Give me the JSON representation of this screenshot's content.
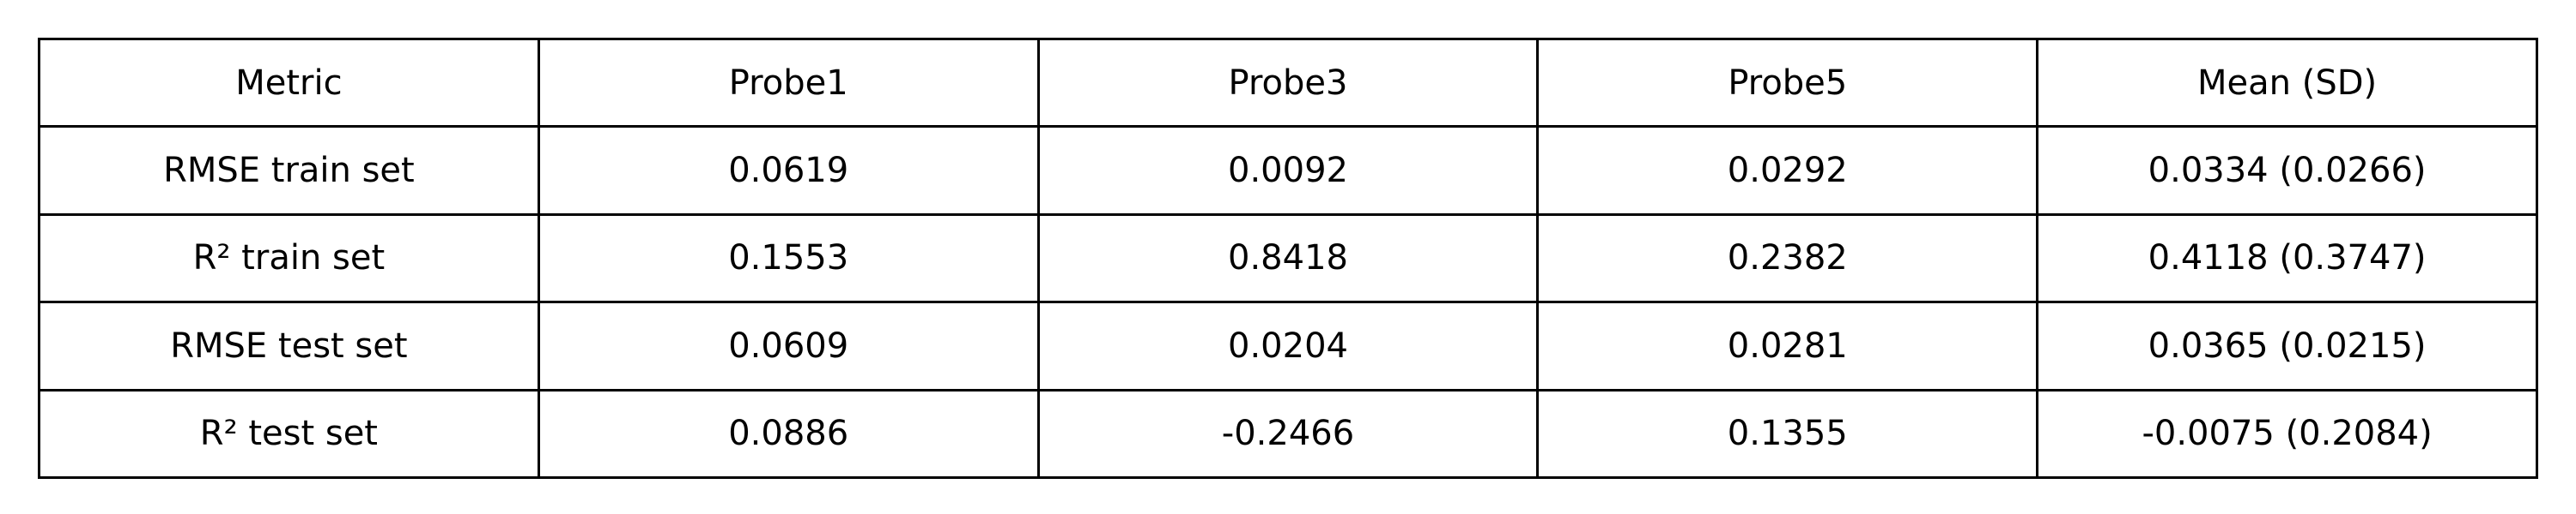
{
  "chart_data": {
    "type": "table",
    "columns": [
      "Metric",
      "Probe1",
      "Probe3",
      "Probe5",
      "Mean (SD)"
    ],
    "rows": [
      [
        "RMSE train set",
        "0.0619",
        "0.0092",
        "0.0292",
        "0.0334 (0.0266)"
      ],
      [
        "R² train set",
        "0.1553",
        "0.8418",
        "0.2382",
        "0.4118 (0.3747)"
      ],
      [
        "RMSE test set",
        "0.0609",
        "0.0204",
        "0.0281",
        "0.0365 (0.0215)"
      ],
      [
        "R² test set",
        "0.0886",
        "-0.2466",
        "0.1355",
        "-0.0075 (0.2084)"
      ]
    ]
  }
}
